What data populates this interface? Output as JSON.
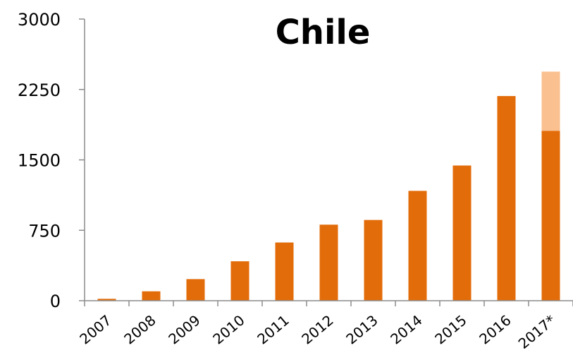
{
  "chart_data": {
    "type": "bar",
    "title": "Chile",
    "xlabel": "",
    "ylabel": "",
    "ylim": [
      0,
      3000
    ],
    "yticks": [
      "0",
      "750",
      "1500",
      "2250",
      "3000"
    ],
    "categories": [
      "2007",
      "2008",
      "2009",
      "2010",
      "2011",
      "2012",
      "2013",
      "2014",
      "2015",
      "2016",
      "2017*"
    ],
    "stacked": true,
    "grid": false,
    "series": [
      {
        "color": "#e36c0a",
        "values": [
          20,
          100,
          230,
          420,
          620,
          810,
          860,
          1170,
          1440,
          2180,
          1810
        ]
      },
      {
        "color": "#fac090",
        "values": [
          0,
          0,
          0,
          0,
          0,
          0,
          0,
          0,
          0,
          0,
          630
        ]
      }
    ]
  }
}
